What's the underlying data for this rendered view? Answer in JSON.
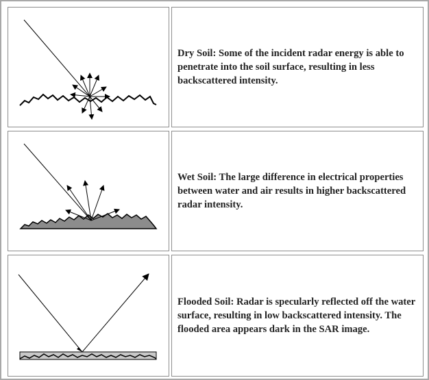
{
  "rows": [
    {
      "id": "dry-soil",
      "text": "Dry Soil: Some of the incident radar energy is able to penetrate into the soil surface, resulting in less backscattered intensity."
    },
    {
      "id": "wet-soil",
      "text": "Wet Soil: The large difference in electrical properties between water and air results in higher backscattered radar intensity."
    },
    {
      "id": "flooded-soil",
      "text": "Flooded Soil: Radar is specularly reflected off the water surface, resulting in low backscattered intensity. The flooded area appears dark in the SAR image."
    }
  ],
  "colors": {
    "line": "#000000",
    "wet_soil_fill": "#8c8c8c",
    "water_fill": "#c8c8c8",
    "cell_border": "#8c8c8c"
  }
}
